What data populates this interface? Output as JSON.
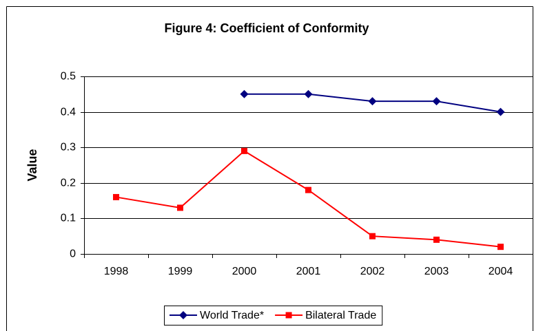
{
  "chart_data": {
    "type": "line",
    "title": "Figure 4: Coefficient of Conformity",
    "y_label": "Value",
    "categories": [
      "1998",
      "1999",
      "2000",
      "2001",
      "2002",
      "2003",
      "2004"
    ],
    "series": [
      {
        "name": "World Trade*",
        "color": "#000080",
        "marker": "diamond",
        "values": [
          null,
          null,
          0.45,
          0.45,
          0.43,
          0.43,
          0.4
        ]
      },
      {
        "name": "Bilateral Trade",
        "color": "#ff0000",
        "marker": "square",
        "values": [
          0.16,
          0.13,
          0.29,
          0.18,
          0.05,
          0.04,
          0.02
        ]
      }
    ],
    "ylim": [
      0,
      0.5
    ],
    "yticks": [
      0,
      0.1,
      0.2,
      0.3,
      0.4,
      0.5
    ],
    "grid": true,
    "legend": "bottom"
  }
}
